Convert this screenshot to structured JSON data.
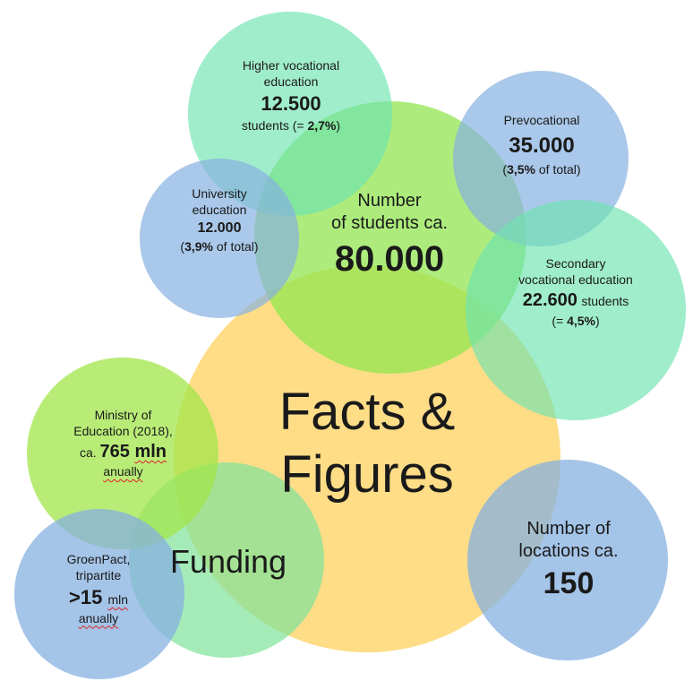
{
  "colors": {
    "facts": "#ffd97a",
    "students": "#92e650",
    "mint": "#6de3b0",
    "blue": "#86b0e0",
    "lime": "#a2e64a"
  },
  "facts": {
    "line1": "Facts &",
    "line2": "Figures"
  },
  "students": {
    "title_line1": "Number",
    "title_line2": "of students ca.",
    "count": "80.000"
  },
  "higher_vocational": {
    "title_line1": "Higher vocational",
    "title_line2": "education",
    "count": "12.500",
    "note_prefix": "students  (= ",
    "note_value": "2,7%",
    "note_suffix": ")"
  },
  "prevocational": {
    "title": "Prevocational",
    "count": "35.000",
    "note_prefix": "(",
    "note_value": "3,5%",
    "note_suffix": " of total)"
  },
  "university": {
    "title_line1": "University",
    "title_line2": "education",
    "count": "12.000",
    "note_prefix": "(",
    "note_value": "3,9%",
    "note_suffix": " of total)"
  },
  "secondary_vocational": {
    "title_line1": "Secondary",
    "title_line2": "vocational education",
    "count": "22.600",
    "unit": "students",
    "note_prefix": "(= ",
    "note_value": "4,5%",
    "note_suffix": ")"
  },
  "ministry": {
    "title_line1": "Ministry of",
    "title_line2": "Education (2018),",
    "amount_prefix": "ca. ",
    "amount_value": "765 ",
    "amount_unit": "mln",
    "frequency": "anually"
  },
  "funding": {
    "title": "Funding"
  },
  "groenpact": {
    "title_line1": "GroenPact,",
    "title_line2": "tripartite",
    "amount_value": ">15 ",
    "amount_unit": "mln",
    "frequency": "anually"
  },
  "locations": {
    "title_line1": "Number of",
    "title_line2": "locations ca.",
    "count": "150"
  }
}
